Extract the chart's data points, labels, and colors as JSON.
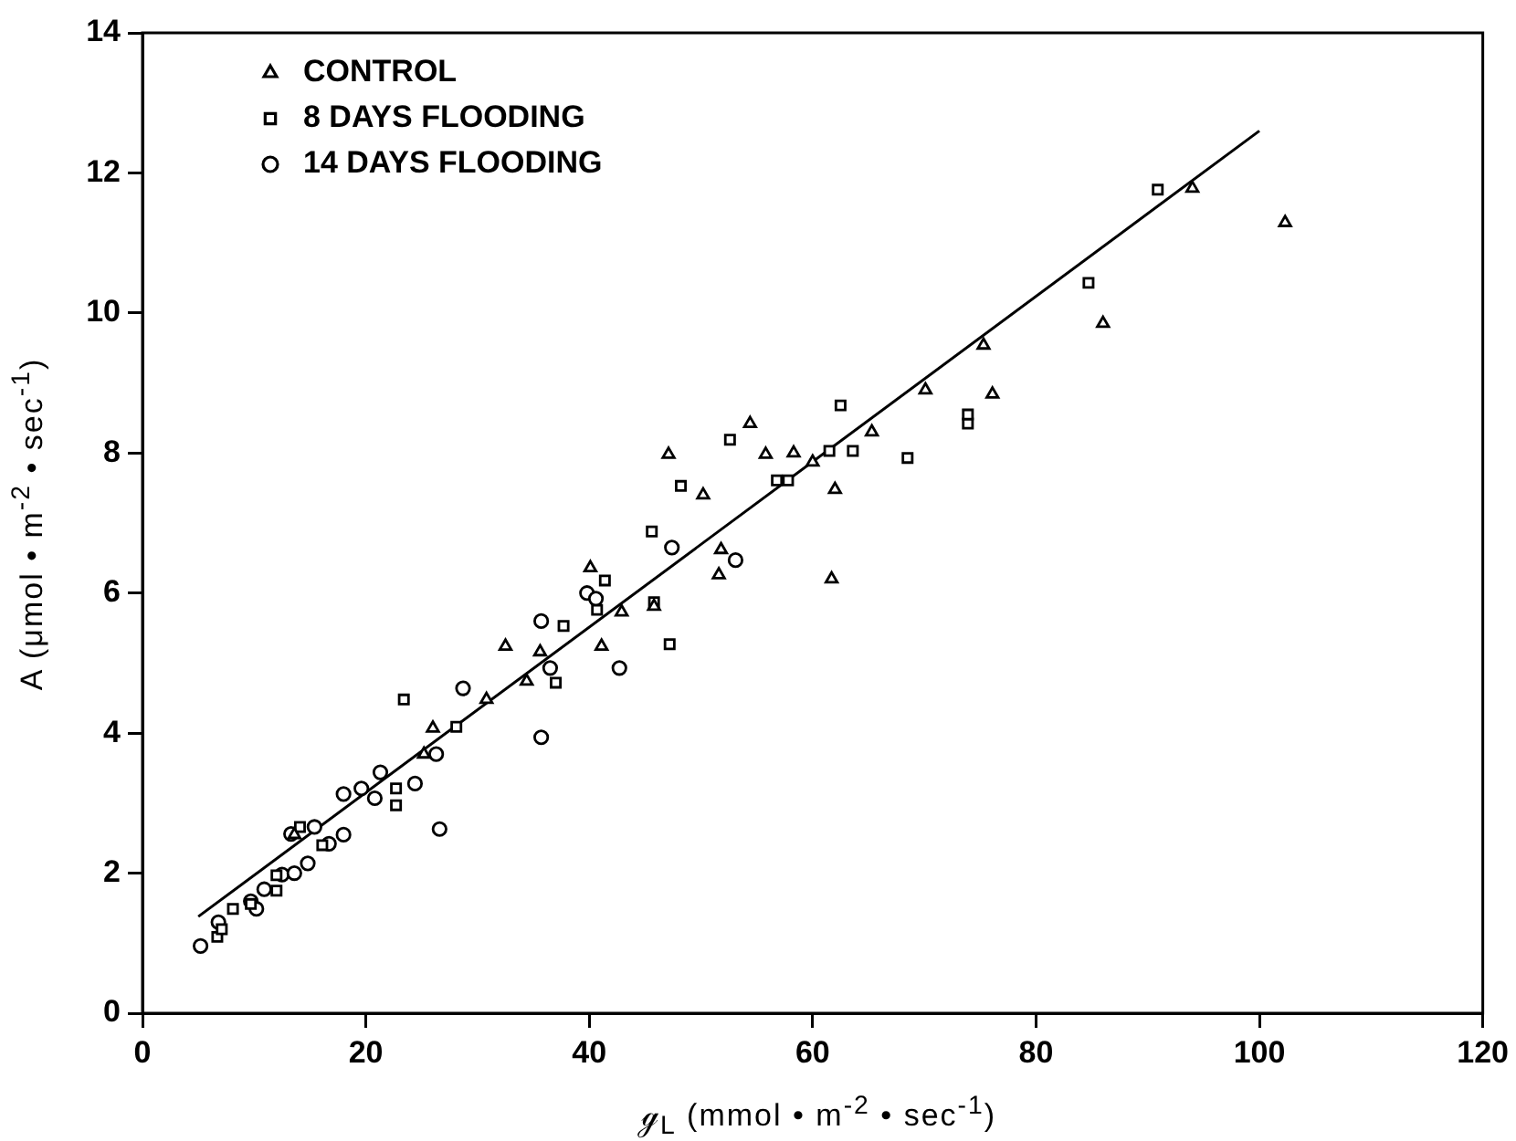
{
  "chart_data": {
    "type": "scatter",
    "xlabel": "ℊ$_{L}$ (mmol • m$^{-2}$ • sec$^{-1}$)",
    "ylabel": "A (μmol • m$^{-2}$ • sec$^{-1}$)",
    "xlim": [
      0,
      120
    ],
    "xticks": [
      0,
      20,
      40,
      60,
      80,
      100,
      120
    ],
    "ylim": [
      0,
      14
    ],
    "yticks": [
      0,
      2,
      4,
      6,
      8,
      10,
      12,
      14
    ],
    "grid": false,
    "legend": "top left",
    "series": [
      {
        "name": "CONTROL",
        "color": "#000000",
        "marker": "triangle",
        "x": [
          13.6,
          25.2,
          26,
          30.8,
          32.5,
          34.4,
          35.6,
          40.1,
          41.1,
          42.9,
          45.8,
          47.1,
          50.2,
          51.6,
          51.8,
          54.4,
          55.8,
          58.3,
          60,
          61.7,
          62,
          65.3,
          70.1,
          75.3,
          76.1,
          86,
          94,
          102.3
        ],
        "values": [
          2.55,
          3.7,
          4.07,
          4.48,
          5.24,
          4.74,
          5.16,
          6.36,
          5.24,
          5.73,
          5.81,
          7.98,
          7.4,
          6.26,
          6.62,
          8.42,
          7.98,
          8.0,
          7.87,
          6.2,
          7.48,
          8.3,
          8.9,
          9.54,
          8.84,
          9.85,
          11.78,
          11.29
        ]
      },
      {
        "name": "8 DAYS FLOODING",
        "color": "#000000",
        "marker": "square",
        "x": [
          6.7,
          7.1,
          8.1,
          9.7,
          12,
          12,
          14.1,
          16.1,
          22.7,
          22.7,
          23.4,
          28.1,
          37,
          37.7,
          40.7,
          41.4,
          45.6,
          45.8,
          47.2,
          48.2,
          52.6,
          56.8,
          57.8,
          61.5,
          62.5,
          63.6,
          68.5,
          73.9,
          73.9,
          84.7,
          90.9
        ],
        "values": [
          1.09,
          1.2,
          1.49,
          1.56,
          1.75,
          1.97,
          2.66,
          2.4,
          2.97,
          3.21,
          4.48,
          4.09,
          4.72,
          5.53,
          5.76,
          6.18,
          6.88,
          5.87,
          5.27,
          7.53,
          8.19,
          7.61,
          7.61,
          8.03,
          8.68,
          8.03,
          7.93,
          8.42,
          8.55,
          10.43,
          11.76
        ]
      },
      {
        "name": "14 DAYS FLOODING",
        "color": "#000000",
        "marker": "circle",
        "x": [
          5.2,
          6.8,
          9.7,
          10.2,
          10.9,
          12.5,
          13.3,
          13.6,
          14.8,
          15.4,
          16.7,
          18,
          18,
          19.6,
          20.8,
          21.3,
          24.4,
          26.3,
          26.6,
          28.7,
          35.7,
          35.7,
          36.5,
          39.8,
          40.6,
          42.7,
          47.4,
          53.1
        ],
        "values": [
          0.96,
          1.3,
          1.6,
          1.49,
          1.77,
          1.98,
          2.56,
          2.0,
          2.14,
          2.66,
          2.42,
          2.55,
          3.13,
          3.21,
          3.07,
          3.44,
          3.28,
          3.7,
          2.63,
          4.64,
          5.6,
          3.94,
          4.93,
          6.0,
          5.92,
          4.93,
          6.65,
          6.47
        ]
      },
      {
        "type": "line",
        "color": "#000000",
        "marker": "none",
        "line_style": "solid",
        "x": [
          5,
          100
        ],
        "values": [
          1.38,
          12.6
        ]
      }
    ]
  }
}
